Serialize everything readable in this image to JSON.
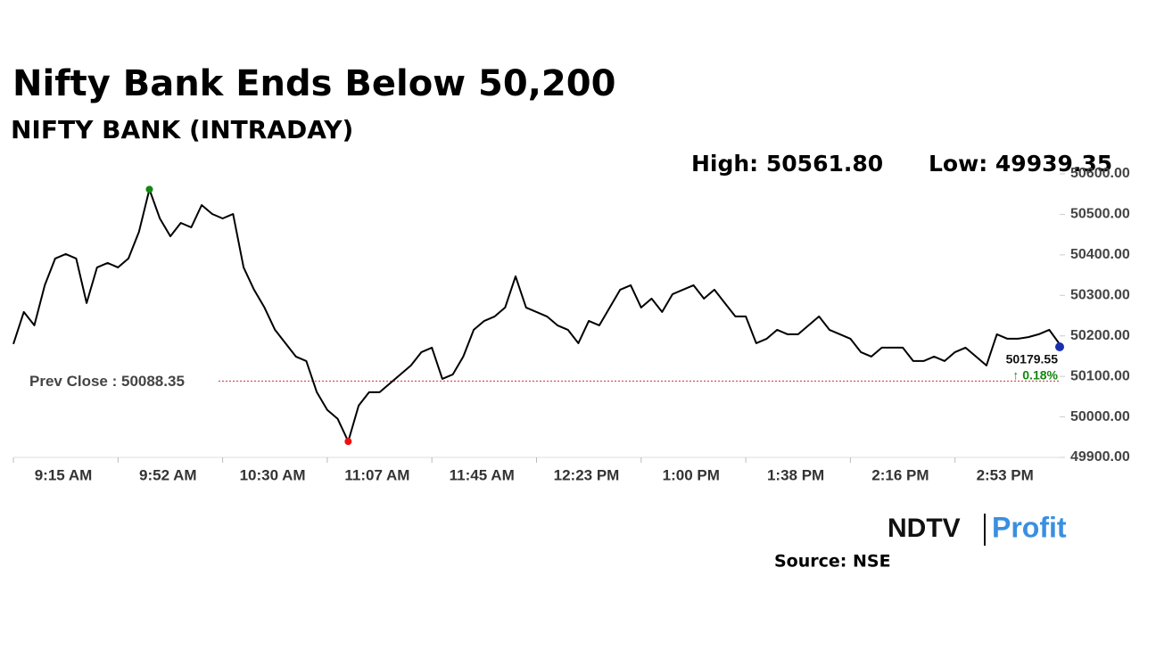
{
  "chart_data": {
    "type": "line",
    "title": "Nifty Bank Ends Below 50,200",
    "subtitle": "NIFTY BANK (INTRADAY)",
    "high_label": "High: 50561.80",
    "low_label": "Low: 49939.35",
    "prev_close": 50088.35,
    "prev_close_label": "Prev Close : 50088.35",
    "last_label": "50179.55",
    "change_label": "↑ 0.18%",
    "source": "Source: NSE",
    "brand": [
      "NDTV",
      "Profit"
    ],
    "categories": [
      "9:15 AM",
      null,
      null,
      null,
      null,
      null,
      null,
      null,
      null,
      null,
      "9:52 AM",
      null,
      null,
      null,
      null,
      null,
      null,
      null,
      null,
      null,
      "10:30 AM",
      null,
      null,
      null,
      null,
      null,
      null,
      null,
      null,
      null,
      "11:07 AM",
      null,
      null,
      null,
      null,
      null,
      null,
      null,
      null,
      null,
      "11:45 AM",
      null,
      null,
      null,
      null,
      null,
      null,
      null,
      null,
      null,
      "12:23 PM",
      null,
      null,
      null,
      null,
      null,
      null,
      null,
      null,
      null,
      "1:00 PM",
      null,
      null,
      null,
      null,
      null,
      null,
      null,
      null,
      null,
      "1:38 PM",
      null,
      null,
      null,
      null,
      null,
      null,
      null,
      null,
      null,
      "2:16 PM",
      null,
      null,
      null,
      null,
      null,
      null,
      null,
      null,
      null,
      "2:53 PM",
      null,
      null,
      null,
      null,
      null,
      null,
      null,
      null,
      null,
      null
    ],
    "series": [
      {
        "name": "NIFTY BANK",
        "color": "#000000",
        "values": [
          50180,
          50259,
          50226,
          50325,
          50391,
          50402,
          50391,
          50281,
          50369,
          50380,
          50369,
          50391,
          50457,
          50561.8,
          50490,
          50446,
          50479,
          50468,
          50523,
          50501,
          50490,
          50501,
          50369,
          50314,
          50270,
          50215,
          50182,
          50149,
          50138,
          50061,
          50017,
          49995,
          49939.35,
          50028,
          50061,
          50061,
          50083,
          50105,
          50127,
          50160,
          50171,
          50094,
          50105,
          50149,
          50215,
          50237,
          50248,
          50270,
          50347,
          50270,
          50259,
          50248,
          50226,
          50215,
          50182,
          50237,
          50226,
          50270,
          50314,
          50325,
          50270,
          50292,
          50259,
          50303,
          50314,
          50325,
          50292,
          50314,
          50281,
          50248,
          50248,
          50182,
          50193,
          50215,
          50204,
          50204,
          50226,
          50248,
          50215,
          50204,
          50193,
          50160,
          50149,
          50171,
          50171,
          50171,
          50138,
          50138,
          50149,
          50138,
          50160,
          50171,
          50149,
          50127,
          50204,
          50193,
          50193,
          50197,
          50204,
          50215,
          50179.55
        ]
      }
    ],
    "high_color": "#118811",
    "low_color": "#ee1111",
    "last_color": "#1a2fb0",
    "prev_close_color": "#cc3333",
    "change_color": "#118811",
    "ylim": [
      49900,
      50600
    ],
    "yticks": [
      {
        "value": 49900,
        "label": "49900.00"
      },
      {
        "value": 50000,
        "label": "50000.00"
      },
      {
        "value": 50100,
        "label": "50100.00"
      },
      {
        "value": 50200,
        "label": "50200.00"
      },
      {
        "value": 50300,
        "label": "50300.00"
      },
      {
        "value": 50400,
        "label": "50400.00"
      },
      {
        "value": 50500,
        "label": "50500.00"
      },
      {
        "value": 50600,
        "label": "50600.00"
      }
    ]
  }
}
